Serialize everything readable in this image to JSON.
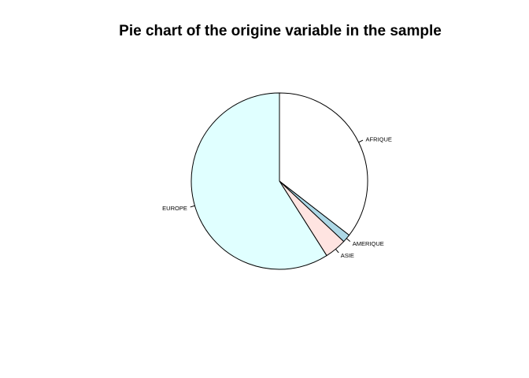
{
  "chart_data": {
    "type": "pie",
    "title": "Pie chart of the origine variable in the sample",
    "categories": [
      "AFRIQUE",
      "AMERIQUE",
      "ASIE",
      "EUROPE"
    ],
    "values": [
      35.5,
      1.5,
      4.0,
      59.0
    ],
    "colors": [
      "#ffffff",
      "#add8e6",
      "#ffe4e1",
      "#e0ffff"
    ],
    "start": "12 o'clock",
    "direction": "clockwise",
    "border_color": "#000000"
  }
}
